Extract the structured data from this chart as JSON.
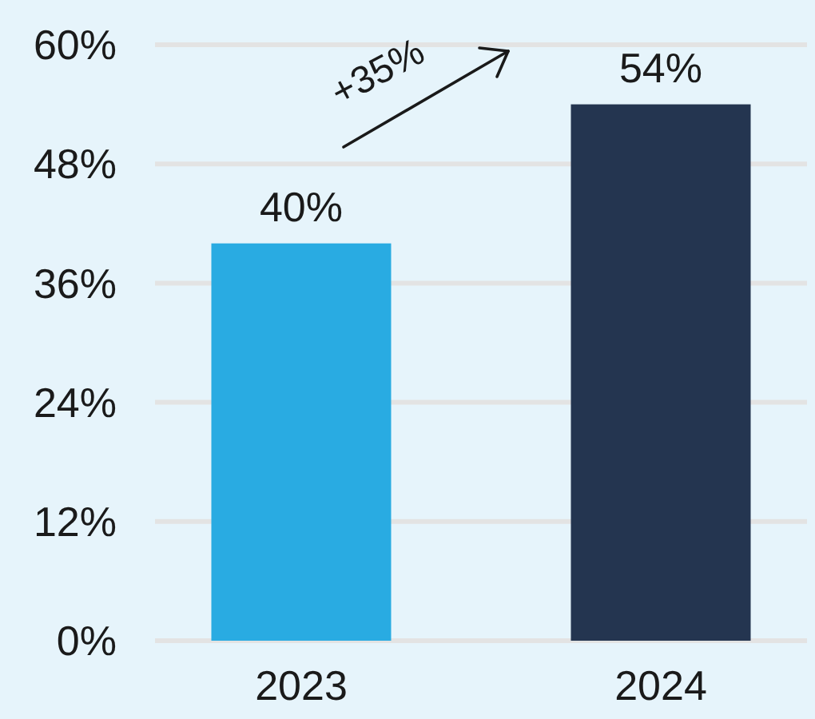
{
  "chart_data": {
    "type": "bar",
    "categories": [
      "2023",
      "2024"
    ],
    "values": [
      40,
      54
    ],
    "colors": [
      "#29abe2",
      "#243550"
    ],
    "ylim": [
      0,
      60
    ],
    "yticks": [
      {
        "value": 0,
        "label": "0%"
      },
      {
        "value": 12,
        "label": "12%"
      },
      {
        "value": 24,
        "label": "24%"
      },
      {
        "value": 36,
        "label": "36%"
      },
      {
        "value": 48,
        "label": "48%"
      },
      {
        "value": 60,
        "label": "60%"
      }
    ],
    "value_labels": [
      "40%",
      "54%"
    ],
    "annotations": [
      "+35%"
    ],
    "grid": "y"
  }
}
